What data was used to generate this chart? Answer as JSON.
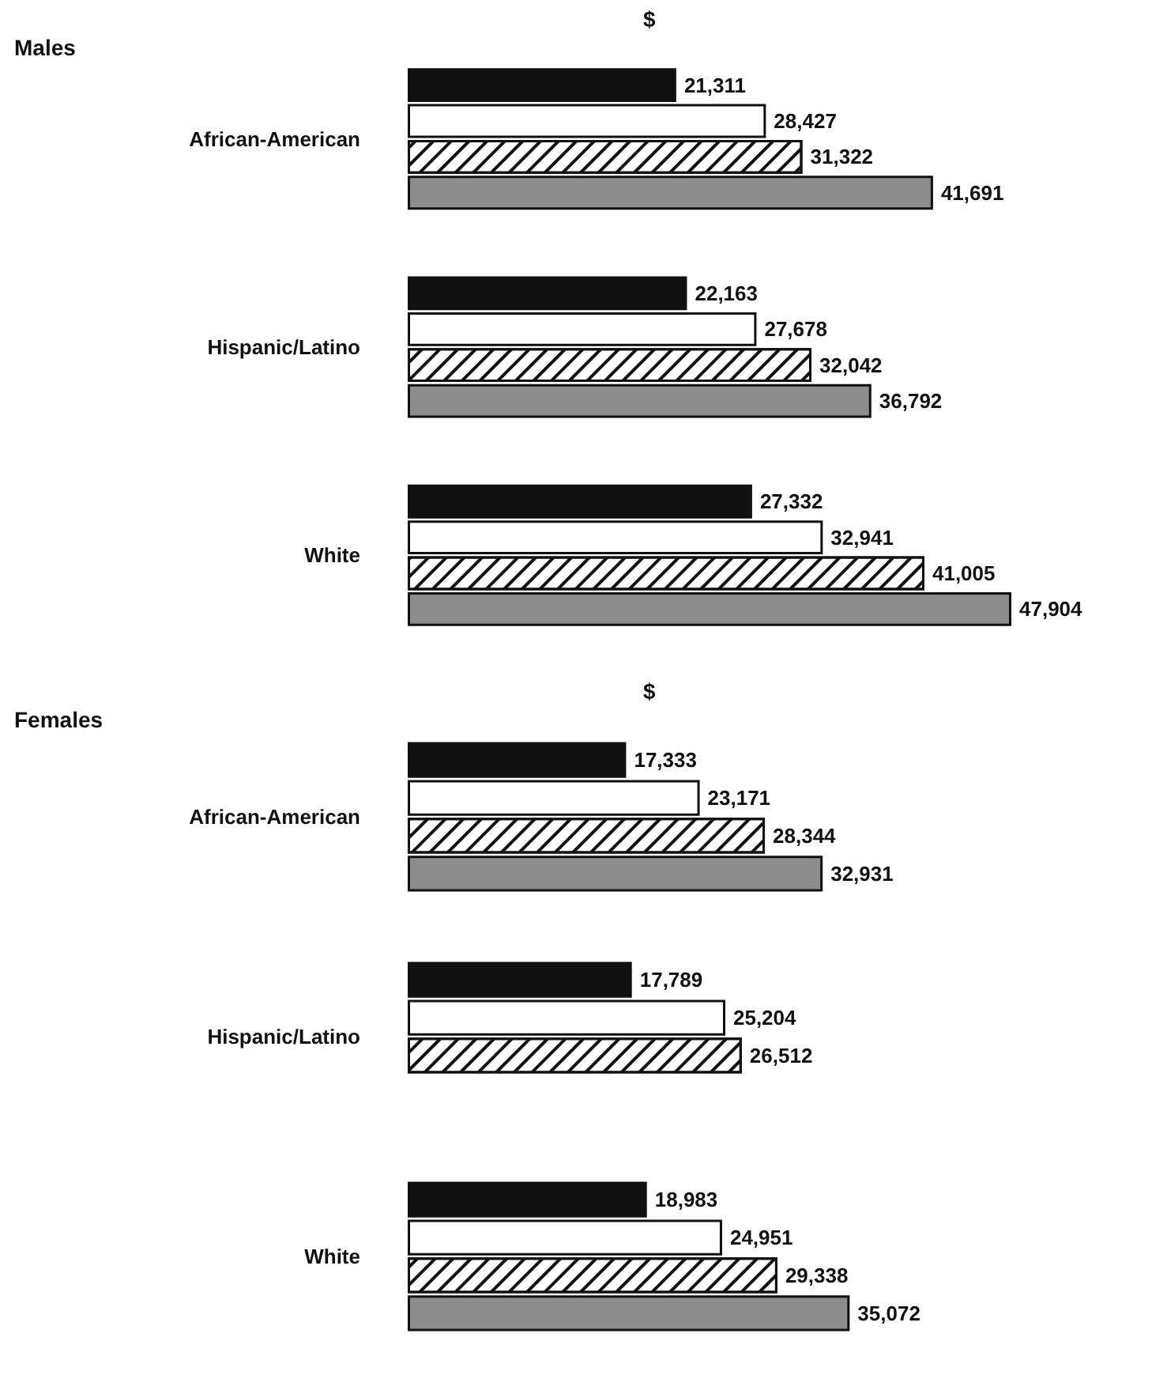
{
  "chart_data": [
    {
      "type": "bar",
      "orientation": "horizontal",
      "title": "Males",
      "xlabel": "$",
      "categories": [
        "African-American",
        "Hispanic/Latino",
        "White"
      ],
      "series": [
        {
          "color": "#111111",
          "values": [
            21311,
            22163,
            27332
          ],
          "value_labels": [
            "21,311",
            "22,163",
            "27,332"
          ]
        },
        {
          "color": "#ffffff",
          "values": [
            28427,
            27678,
            32941
          ],
          "value_labels": [
            "28,427",
            "27,678",
            "32,941"
          ]
        },
        {
          "color": "#ffffff",
          "values": [
            31322,
            32042,
            41005
          ],
          "value_labels": [
            "31,322",
            "32,042",
            "41,005"
          ]
        },
        {
          "color": "#8c8c8c",
          "values": [
            41691,
            36792,
            47904
          ],
          "value_labels": [
            "41,691",
            "36,792",
            "47,904"
          ]
        }
      ]
    },
    {
      "type": "bar",
      "orientation": "horizontal",
      "title": "Females",
      "xlabel": "$",
      "categories": [
        "African-American",
        "Hispanic/Latino",
        "White"
      ],
      "series": [
        {
          "color": "#111111",
          "values": [
            17333,
            17789,
            18983
          ],
          "value_labels": [
            "17,333",
            "17,789",
            "18,983"
          ]
        },
        {
          "color": "#ffffff",
          "values": [
            23171,
            25204,
            24951
          ],
          "value_labels": [
            "23,171",
            "25,204",
            "24,951"
          ]
        },
        {
          "color": "#ffffff",
          "values": [
            28344,
            26512,
            29338
          ],
          "value_labels": [
            "28,344",
            "26,512",
            "29,338"
          ]
        },
        {
          "color": "#8c8c8c",
          "values": [
            32931,
            null,
            35072
          ],
          "value_labels": [
            "32,931",
            null,
            "35,072"
          ]
        }
      ]
    }
  ]
}
